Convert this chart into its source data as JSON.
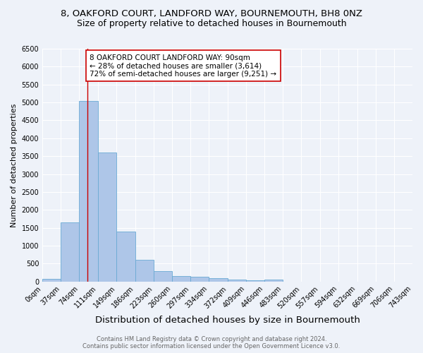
{
  "title": "8, OAKFORD COURT, LANDFORD WAY, BOURNEMOUTH, BH8 0NZ",
  "subtitle": "Size of property relative to detached houses in Bournemouth",
  "xlabel": "Distribution of detached houses by size in Bournemouth",
  "ylabel": "Number of detached properties",
  "bin_edges": [
    0,
    37,
    74,
    111,
    149,
    186,
    223,
    260,
    297,
    334,
    372,
    409,
    446,
    483,
    520,
    557,
    594,
    632,
    669,
    706,
    743
  ],
  "bar_heights": [
    75,
    1650,
    5050,
    3600,
    1400,
    610,
    300,
    160,
    140,
    100,
    55,
    35,
    60,
    0,
    0,
    0,
    0,
    0,
    0,
    0
  ],
  "bar_color": "#aec6e8",
  "bar_edge_color": "#6aaad4",
  "property_line_x": 90,
  "property_line_color": "#cc0000",
  "annotation_text": "8 OAKFORD COURT LANDFORD WAY: 90sqm\n← 28% of detached houses are smaller (3,614)\n72% of semi-detached houses are larger (9,251) →",
  "annotation_box_color": "#ffffff",
  "annotation_box_edge_color": "#cc0000",
  "ylim": [
    0,
    6500
  ],
  "yticks": [
    0,
    500,
    1000,
    1500,
    2000,
    2500,
    3000,
    3500,
    4000,
    4500,
    5000,
    5500,
    6000,
    6500
  ],
  "footer_line1": "Contains HM Land Registry data © Crown copyright and database right 2024.",
  "footer_line2": "Contains public sector information licensed under the Open Government Licence v3.0.",
  "background_color": "#eef2f9",
  "grid_color": "#ffffff",
  "title_fontsize": 9.5,
  "subtitle_fontsize": 9,
  "xlabel_fontsize": 9.5,
  "ylabel_fontsize": 8,
  "tick_fontsize": 7,
  "annotation_fontsize": 7.5,
  "footer_fontsize": 6,
  "footer_color": "#666666"
}
